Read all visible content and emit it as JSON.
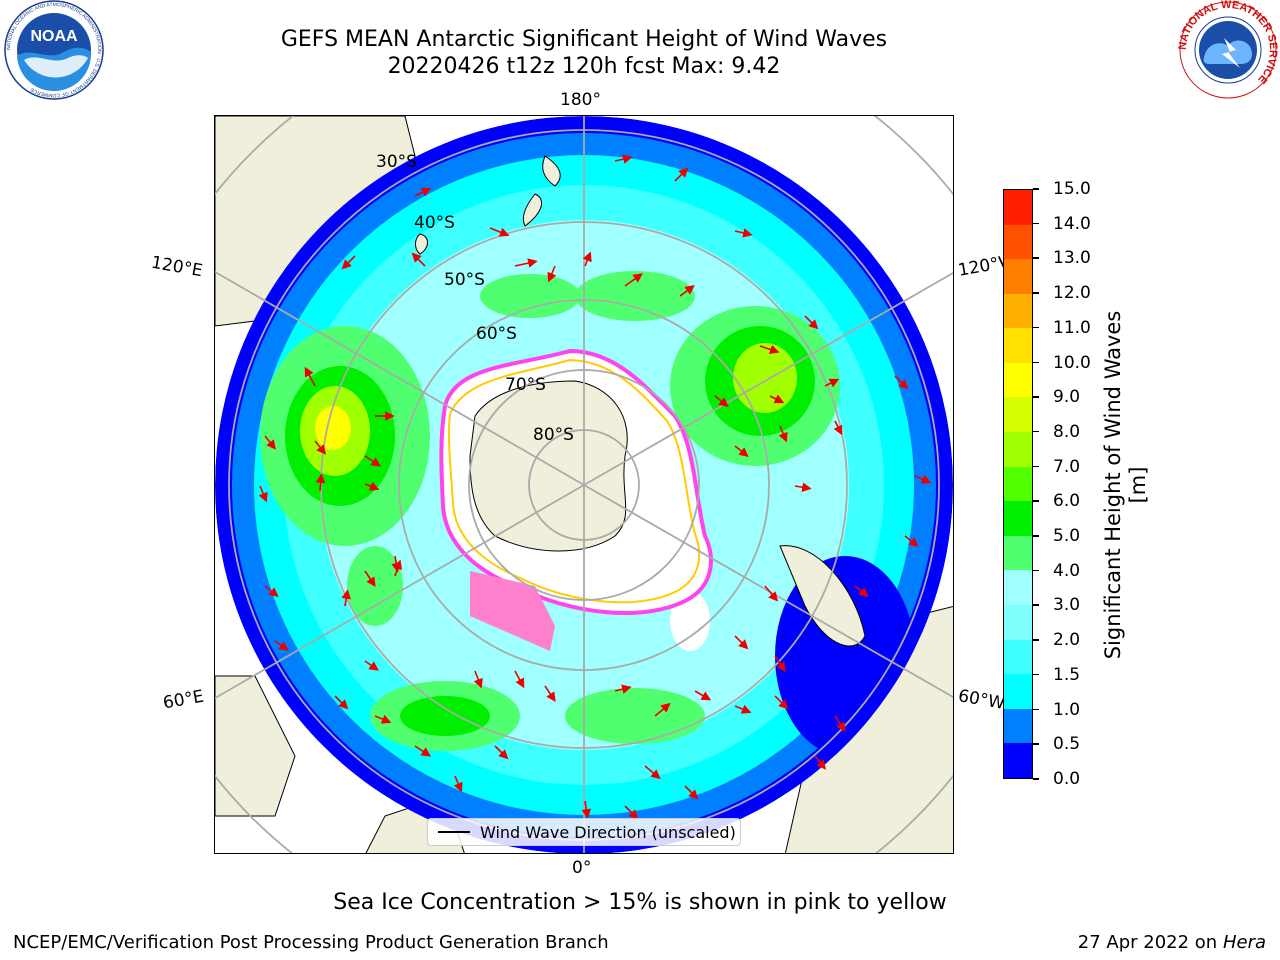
{
  "title": {
    "line1": "GEFS MEAN Antarctic Significant Height of Wind Waves",
    "line2": "20220426 t12z 120h fcst   Max: 9.42"
  },
  "logos": {
    "noaa": {
      "text": "NOAA",
      "ring_text": "NATIONAL OCEANIC AND ATMOSPHERIC ADMINISTRATION · U.S. DEPARTMENT OF COMMERCE ·"
    },
    "nws": {
      "ring_text": "NATIONAL WEATHER SERVICE"
    }
  },
  "map": {
    "projection": "south-polar-stereographic",
    "longitude_labels": {
      "top": "180°",
      "bottom": "0°",
      "left_upper": "120°E",
      "right_upper": "120°W",
      "left_lower": "60°E",
      "right_lower": "60°W"
    },
    "latitude_labels": [
      "30°S",
      "40°S",
      "50°S",
      "60°S",
      "70°S",
      "80°S"
    ],
    "legend": {
      "entry": "Wind Wave Direction (unscaled)"
    }
  },
  "colorbar": {
    "label": "Significant Height of Wind Waves [m]",
    "ticks": [
      "0.0",
      "0.5",
      "1.0",
      "1.5",
      "2.0",
      "3.0",
      "4.0",
      "5.0",
      "6.0",
      "7.0",
      "8.0",
      "9.0",
      "10.0",
      "11.0",
      "12.0",
      "13.0",
      "14.0",
      "15.0"
    ],
    "colors": [
      "#0000ff",
      "#0080ff",
      "#00ffff",
      "#40ffff",
      "#80ffff",
      "#a0ffff",
      "#50ff70",
      "#00ee00",
      "#50ff00",
      "#a0ff00",
      "#d4ff00",
      "#ffff00",
      "#ffe000",
      "#ffb000",
      "#ff8000",
      "#ff5000",
      "#ff2000"
    ]
  },
  "caption": "Sea Ice Concentration > 15% is shown in pink to yellow",
  "footer": {
    "left": "NCEP/EMC/Verification Post Processing Product Generation Branch",
    "right_prefix": "27 Apr 2022 on ",
    "right_machine": "Hera"
  }
}
